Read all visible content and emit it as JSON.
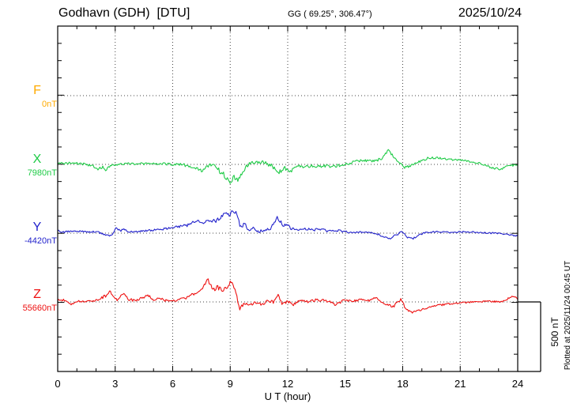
{
  "header": {
    "title": "Godhavn (GDH)  [DTU]",
    "coords": "GG ( 69.25°, 306.47°)",
    "date": "2025/10/24"
  },
  "right_margin": {
    "scale_label": "500 nT",
    "plotted_label": "Plotted at 2025/11/24 00:45 UT"
  },
  "x_axis": {
    "label": "U T (hour)",
    "ticks": [
      "0",
      "3",
      "6",
      "9",
      "12",
      "15",
      "18",
      "21",
      "24"
    ],
    "min": 0,
    "max": 24
  },
  "chart_data": {
    "type": "line",
    "title": "Godhavn (GDH) [DTU] magnetogram, 2025/10/24",
    "xlabel": "U T (hour)",
    "ylabel": "nT",
    "x_range": [
      0,
      24
    ],
    "grid": "dotted, every 3 hours vertical, channel baselines horizontal",
    "scale_bar_nT": 500,
    "channel_spacing_nT": 500,
    "series": [
      {
        "name": "F",
        "color": "#ffaa00",
        "baseline_label": "0nT",
        "baseline_nT": 0,
        "keypoints": []
      },
      {
        "name": "X",
        "color": "#1ecb46",
        "baseline_label": "7980nT",
        "baseline_nT": 7980,
        "keypoints": [
          [
            0,
            5,
            8
          ],
          [
            0.9,
            12,
            8
          ],
          [
            1.8,
            -10,
            10
          ],
          [
            2.1,
            -35,
            12
          ],
          [
            2.35,
            -20,
            10
          ],
          [
            2.5,
            -40,
            10
          ],
          [
            2.8,
            -5,
            8
          ],
          [
            3.5,
            5,
            8
          ],
          [
            5,
            5,
            8
          ],
          [
            6.5,
            0,
            10
          ],
          [
            7.2,
            -30,
            15
          ],
          [
            7.5,
            -45,
            15
          ],
          [
            7.8,
            -10,
            12
          ],
          [
            8.1,
            0,
            10
          ],
          [
            8.4,
            -40,
            20
          ],
          [
            8.8,
            -100,
            25
          ],
          [
            9,
            -120,
            20
          ],
          [
            9.2,
            -90,
            20
          ],
          [
            9.4,
            -115,
            15
          ],
          [
            9.7,
            -40,
            15
          ],
          [
            10,
            10,
            12
          ],
          [
            10.4,
            20,
            12
          ],
          [
            10.8,
            15,
            12
          ],
          [
            11.3,
            -20,
            18
          ],
          [
            11.6,
            -55,
            20
          ],
          [
            11.9,
            -30,
            20
          ],
          [
            12.2,
            -45,
            15
          ],
          [
            12.5,
            -10,
            12
          ],
          [
            13,
            -15,
            12
          ],
          [
            13.5,
            -10,
            12
          ],
          [
            14,
            -15,
            12
          ],
          [
            14.5,
            -10,
            12
          ],
          [
            15,
            0,
            10
          ],
          [
            15.5,
            20,
            10
          ],
          [
            16,
            30,
            10
          ],
          [
            16.5,
            25,
            10
          ],
          [
            16.9,
            40,
            10
          ],
          [
            17.25,
            100,
            10
          ],
          [
            17.5,
            60,
            10
          ],
          [
            17.8,
            20,
            10
          ],
          [
            18.1,
            -25,
            10
          ],
          [
            18.4,
            -10,
            8
          ],
          [
            18.8,
            15,
            8
          ],
          [
            19.3,
            45,
            8
          ],
          [
            19.8,
            50,
            8
          ],
          [
            20.3,
            40,
            8
          ],
          [
            21,
            30,
            8
          ],
          [
            21.5,
            20,
            8
          ],
          [
            22,
            10,
            8
          ],
          [
            22.7,
            -25,
            8
          ],
          [
            23.1,
            -35,
            8
          ],
          [
            23.5,
            -5,
            8
          ],
          [
            24,
            -10,
            8
          ]
        ]
      },
      {
        "name": "Y",
        "color": "#2222cc",
        "baseline_label": "-4420nT",
        "baseline_nT": -4420,
        "keypoints": [
          [
            0,
            15,
            8
          ],
          [
            0.5,
            10,
            8
          ],
          [
            1,
            15,
            6
          ],
          [
            1.5,
            10,
            6
          ],
          [
            2,
            12,
            6
          ],
          [
            2.55,
            -15,
            8
          ],
          [
            2.8,
            -20,
            8
          ],
          [
            3.05,
            45,
            8
          ],
          [
            3.25,
            15,
            8
          ],
          [
            3.45,
            30,
            8
          ],
          [
            3.7,
            10,
            6
          ],
          [
            4.5,
            15,
            6
          ],
          [
            5.5,
            30,
            8
          ],
          [
            6.2,
            45,
            10
          ],
          [
            6.8,
            60,
            12
          ],
          [
            7.1,
            80,
            12
          ],
          [
            7.35,
            90,
            12
          ],
          [
            7.6,
            70,
            12
          ],
          [
            7.9,
            100,
            15
          ],
          [
            8.2,
            85,
            15
          ],
          [
            8.5,
            110,
            15
          ],
          [
            8.75,
            150,
            15
          ],
          [
            8.95,
            130,
            15
          ],
          [
            9.1,
            165,
            12
          ],
          [
            9.3,
            150,
            12
          ],
          [
            9.55,
            40,
            15
          ],
          [
            9.75,
            70,
            15
          ],
          [
            9.95,
            15,
            12
          ],
          [
            10.2,
            45,
            12
          ],
          [
            10.45,
            10,
            10
          ],
          [
            10.8,
            25,
            10
          ],
          [
            11.1,
            35,
            12
          ],
          [
            11.45,
            110,
            15
          ],
          [
            11.6,
            90,
            15
          ],
          [
            11.75,
            50,
            12
          ],
          [
            11.95,
            65,
            12
          ],
          [
            12.2,
            30,
            10
          ],
          [
            12.5,
            25,
            10
          ],
          [
            12.9,
            35,
            10
          ],
          [
            13.3,
            20,
            10
          ],
          [
            13.7,
            30,
            10
          ],
          [
            14.1,
            15,
            8
          ],
          [
            14.6,
            20,
            8
          ],
          [
            15,
            10,
            8
          ],
          [
            15.5,
            5,
            6
          ],
          [
            16,
            10,
            6
          ],
          [
            16.6,
            0,
            6
          ],
          [
            17,
            -25,
            8
          ],
          [
            17.35,
            -35,
            8
          ],
          [
            17.7,
            -10,
            8
          ],
          [
            17.95,
            10,
            6
          ],
          [
            18.25,
            -30,
            8
          ],
          [
            18.55,
            -40,
            8
          ],
          [
            18.8,
            -15,
            6
          ],
          [
            19.2,
            5,
            6
          ],
          [
            19.8,
            10,
            6
          ],
          [
            20.5,
            5,
            6
          ],
          [
            21.2,
            10,
            6
          ],
          [
            22,
            5,
            6
          ],
          [
            22.8,
            0,
            6
          ],
          [
            23.4,
            -10,
            6
          ],
          [
            24,
            -20,
            6
          ]
        ]
      },
      {
        "name": "Z",
        "color": "#ee1111",
        "baseline_label": "55660nT",
        "baseline_nT": 55660,
        "keypoints": [
          [
            0,
            10,
            8
          ],
          [
            0.4,
            15,
            8
          ],
          [
            0.7,
            -15,
            8
          ],
          [
            1.1,
            5,
            6
          ],
          [
            1.8,
            5,
            6
          ],
          [
            2.2,
            20,
            10
          ],
          [
            2.5,
            45,
            12
          ],
          [
            2.75,
            75,
            12
          ],
          [
            2.95,
            30,
            10
          ],
          [
            3.1,
            15,
            10
          ],
          [
            3.3,
            55,
            12
          ],
          [
            3.5,
            50,
            12
          ],
          [
            3.75,
            15,
            10
          ],
          [
            4.1,
            10,
            8
          ],
          [
            4.55,
            40,
            10
          ],
          [
            4.75,
            45,
            10
          ],
          [
            5,
            15,
            8
          ],
          [
            5.3,
            30,
            8
          ],
          [
            5.6,
            10,
            8
          ],
          [
            6.2,
            10,
            8
          ],
          [
            6.6,
            25,
            10
          ],
          [
            6.9,
            45,
            12
          ],
          [
            7.2,
            60,
            12
          ],
          [
            7.5,
            90,
            15
          ],
          [
            7.85,
            160,
            15
          ],
          [
            8.1,
            90,
            15
          ],
          [
            8.35,
            105,
            15
          ],
          [
            8.6,
            85,
            15
          ],
          [
            8.85,
            110,
            12
          ],
          [
            9.05,
            150,
            12
          ],
          [
            9.25,
            90,
            15
          ],
          [
            9.5,
            -45,
            15
          ],
          [
            9.75,
            -15,
            12
          ],
          [
            10,
            -25,
            12
          ],
          [
            10.3,
            0,
            12
          ],
          [
            10.6,
            -15,
            12
          ],
          [
            11,
            5,
            12
          ],
          [
            11.3,
            0,
            12
          ],
          [
            11.5,
            65,
            12
          ],
          [
            11.7,
            -25,
            12
          ],
          [
            12,
            5,
            12
          ],
          [
            12.3,
            -15,
            12
          ],
          [
            12.7,
            10,
            10
          ],
          [
            13.1,
            0,
            10
          ],
          [
            13.5,
            15,
            10
          ],
          [
            14,
            10,
            10
          ],
          [
            14.5,
            -20,
            10
          ],
          [
            14.9,
            10,
            10
          ],
          [
            15.3,
            5,
            8
          ],
          [
            15.8,
            15,
            8
          ],
          [
            16.3,
            10,
            8
          ],
          [
            16.6,
            30,
            8
          ],
          [
            17,
            -10,
            8
          ],
          [
            17.5,
            -35,
            10
          ],
          [
            17.9,
            20,
            8
          ],
          [
            18.15,
            -45,
            10
          ],
          [
            18.45,
            -75,
            10
          ],
          [
            18.8,
            -60,
            8
          ],
          [
            19.3,
            -45,
            8
          ],
          [
            19.9,
            -25,
            8
          ],
          [
            20.5,
            -12,
            6
          ],
          [
            21.1,
            -5,
            6
          ],
          [
            21.8,
            0,
            6
          ],
          [
            22.5,
            5,
            6
          ],
          [
            23.2,
            0,
            6
          ],
          [
            23.75,
            45,
            8
          ],
          [
            24,
            25,
            8
          ]
        ]
      }
    ]
  }
}
